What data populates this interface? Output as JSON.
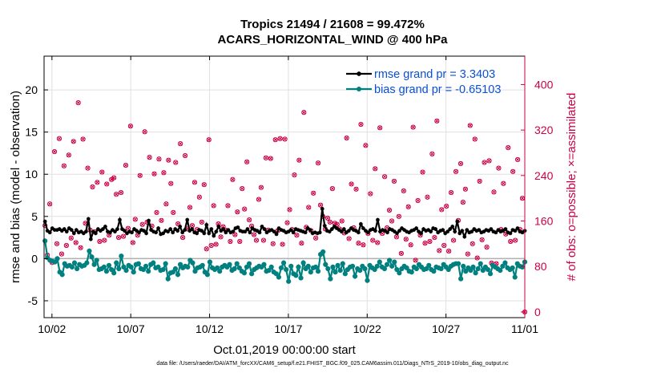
{
  "title_line1": "Tropics 21494 / 21608 = 99.472%",
  "title_line2": "ACARS_HORIZONTAL_WIND @ 400 hPa",
  "footnote": "data file: /Users/raeder/DAI/ATM_forcXX/CAM6_setup/f.e21.FHIST_BGC.f09_025.CAM6assim.011/Diags_NTrS_2019-10/obs_diag_output.nc",
  "colors": {
    "rmse": "#000000",
    "bias": "#00807f",
    "obs": "#cc0044",
    "legend_text": "#0a4fd6",
    "grid": "#e0e0e0",
    "zero_line": "#b0b0b0"
  },
  "chart_data": {
    "type": "line",
    "xlabel": "Oct.01,2019 00:00:00 start",
    "ylabel": "rmse and bias (model - observation)",
    "ylabel_right": "# of obs: o=possible; ×=assimilated",
    "xlim": [
      0.5,
      31.0
    ],
    "ylim": [
      -7,
      24
    ],
    "ylim_right": [
      -10,
      450
    ],
    "xtick_values": [
      1,
      6,
      11,
      16,
      21,
      26,
      31
    ],
    "xtick_labels": [
      "10/02",
      "10/07",
      "10/12",
      "10/17",
      "10/22",
      "10/27",
      "11/01"
    ],
    "ytick_values": [
      -5,
      0,
      5,
      10,
      15,
      20
    ],
    "ytick_labels": [
      "-5",
      "0",
      "5",
      "10",
      "15",
      "20"
    ],
    "ytick_right_values": [
      0,
      80,
      160,
      240,
      320,
      400
    ],
    "ytick_right_labels": [
      "0",
      "80",
      "160",
      "240",
      "320",
      "400"
    ],
    "legend": {
      "placement": "top-right",
      "entries": [
        "rmse grand pr = 3.3403",
        "bias grand pr = -0.65103"
      ]
    },
    "series": [
      {
        "name": "rmse grand pr = 3.3403",
        "axis": "left",
        "marker": "star",
        "values": [
          4.4,
          3.3,
          3.1,
          3.6,
          3.4,
          3.4,
          3.5,
          3.3,
          3.5,
          3.2,
          3.6,
          3.4,
          3.0,
          3.4,
          3.1,
          3.2,
          3.0,
          3.2,
          4.7,
          2.3,
          3.2,
          3.0,
          3.5,
          3.3,
          3.5,
          3.8,
          3.2,
          3.1,
          3.4,
          3.2,
          3.5,
          4.6,
          3.5,
          3.3,
          3.0,
          3.2,
          3.1,
          3.5,
          3.3,
          3.1,
          3.4,
          3.3,
          3.0,
          4.5,
          3.4,
          3.2,
          3.1,
          3.6,
          2.9,
          3.0,
          3.3,
          3.2,
          3.5,
          3.1,
          3.5,
          3.3,
          3.8,
          3.1,
          3.4,
          4.6,
          3.3,
          3.5,
          3.1,
          3.0,
          3.4,
          3.3,
          3.0,
          4.0,
          3.0,
          3.5,
          2.7,
          3.2,
          3.8,
          3.3,
          3.5,
          3.1,
          3.4,
          3.1,
          3.2,
          3.6,
          3.7,
          3.3,
          3.2,
          3.2,
          3.5,
          3.1,
          3.6,
          3.4,
          3.3,
          3.1,
          3.8,
          3.5,
          3.1,
          3.3,
          3.4,
          3.2,
          2.9,
          3.6,
          3.4,
          3.3,
          3.1,
          3.2,
          3.4,
          3.1,
          3.5,
          3.4,
          3.3,
          3.2,
          3.1,
          3.6,
          3.4,
          3.0,
          3.1,
          3.0,
          3.1,
          5.9,
          3.9,
          3.3,
          3.2,
          3.5,
          3.8,
          3.6,
          3.4,
          3.2,
          3.5,
          3.1,
          3.3,
          3.6,
          3.4,
          3.3,
          3.1,
          4.1,
          3.6,
          3.3,
          3.1,
          3.4,
          3.5,
          3.3,
          4.6,
          3.2,
          3.4,
          3.3,
          3.1,
          3.5,
          3.4,
          3.2,
          3.0,
          3.3,
          3.6,
          3.4,
          3.2,
          3.1,
          3.3,
          3.4,
          3.6,
          3.2,
          3.0,
          3.5,
          3.3,
          3.4,
          3.2,
          3.6,
          3.5,
          3.1,
          3.3,
          3.4,
          3.0,
          3.2,
          3.5,
          3.8,
          3.2,
          4.4,
          3.0,
          3.3,
          2.6,
          3.4,
          3.1,
          3.2,
          3.5,
          3.3,
          3.4,
          3.1,
          3.2,
          3.4,
          3.3,
          3.5,
          3.2,
          3.1,
          3.4,
          3.2,
          3.3,
          3.5,
          3.1,
          3.0,
          3.4,
          3.3,
          3.6,
          3.2,
          3.1,
          3.3
        ]
      },
      {
        "name": "bias grand pr = -0.65103",
        "axis": "left",
        "marker": "dot",
        "values": [
          2.1,
          0.1,
          -0.2,
          -0.3,
          -0.4,
          0.0,
          -1.6,
          -1.9,
          -0.6,
          -0.9,
          -0.8,
          -1.0,
          -0.5,
          -1.2,
          -0.7,
          -0.9,
          -0.8,
          -0.5,
          0.9,
          0.2,
          -0.7,
          -0.2,
          -1.3,
          -1.2,
          -1.0,
          -1.5,
          -0.8,
          -1.3,
          -1.7,
          -0.5,
          -1.2,
          0.3,
          -1.0,
          -1.4,
          -0.8,
          -1.0,
          -1.6,
          -0.7,
          -0.6,
          -1.2,
          -1.3,
          -0.9,
          -1.5,
          -0.7,
          -0.5,
          -1.1,
          -1.0,
          -1.4,
          -1.3,
          -0.6,
          -2.4,
          -1.7,
          -1.6,
          -1.2,
          -1.9,
          -0.7,
          -1.1,
          -0.9,
          -1.0,
          -0.2,
          -0.5,
          -1.5,
          -1.1,
          -1.0,
          -0.8,
          -1.6,
          -1.9,
          -0.4,
          -1.1,
          -1.3,
          -1.1,
          -1.5,
          -1.0,
          -0.8,
          -1.0,
          -0.7,
          -1.4,
          -1.2,
          -0.6,
          -1.1,
          -1.5,
          -1.7,
          -1.0,
          -0.6,
          -1.8,
          -1.3,
          -1.1,
          -0.9,
          -1.0,
          -0.7,
          -1.5,
          -1.4,
          -1.0,
          -1.6,
          -1.8,
          -2.2,
          -1.1,
          -0.5,
          -1.3,
          -2.7,
          -0.9,
          -1.8,
          -2.0,
          -1.0,
          -2.3,
          -0.5,
          -1.2,
          -0.9,
          -1.6,
          -1.1,
          -1.0,
          -1.5,
          0.5,
          0.8,
          -0.7,
          -1.2,
          -2.4,
          -1.0,
          -1.6,
          -0.8,
          -1.4,
          -0.6,
          -1.8,
          -1.3,
          -1.0,
          -0.9,
          -2.1,
          -1.2,
          -1.4,
          -0.9,
          -1.2,
          -2.6,
          -0.8,
          -1.1,
          -1.3,
          -0.9,
          -0.4,
          -1.0,
          -1.2,
          -0.7,
          -0.2,
          -0.9,
          -0.4,
          -1.3,
          -1.7,
          -1.2,
          -0.9,
          -1.1,
          -1.5,
          -1.6,
          -1.0,
          -1.2,
          -0.7,
          -1.0,
          -1.3,
          -1.2,
          -0.8,
          -1.3,
          -1.5,
          -1.0,
          -1.1,
          -1.2,
          -0.7,
          -1.0,
          -1.3,
          -0.9,
          -0.7,
          -0.6,
          -0.6,
          -2.4,
          -0.9,
          -1.5,
          -1.1,
          -1.4,
          -1.0,
          -1.7,
          -1.2,
          -0.6,
          -1.4,
          -1.0,
          -1.3,
          -1.8,
          -0.8,
          -1.0,
          -1.2,
          -1.4,
          -0.9,
          -0.5,
          -1.1,
          -1.3,
          -1.1,
          -2.2,
          -0.6,
          -0.9,
          -1.0,
          -0.4
        ]
      },
      {
        "name": "obs possible",
        "axis": "right",
        "marker": "circle",
        "values": [
          152,
          100,
          190,
          87,
          282,
          120,
          305,
          102,
          257,
          117,
          276,
          130,
          300,
          122,
          368,
          113,
          304,
          156,
          253,
          144,
          220,
          141,
          228,
          124,
          246,
          126,
          225,
          135,
          233,
          236,
          207,
          131,
          210,
          133,
          258,
          147,
          327,
          122,
          163,
          135,
          240,
          154,
          317,
          158,
          272,
          151,
          243,
          175,
          269,
          161,
          245,
          190,
          267,
          226,
          175,
          263,
          155,
          296,
          131,
          275,
          146,
          184,
          152,
          228,
          145,
          202,
          158,
          224,
          111,
          303,
          117,
          187,
          119,
          155,
          132,
          150,
          144,
          187,
          124,
          233,
          136,
          176,
          124,
          217,
          181,
          264,
          162,
          151,
          136,
          126,
          198,
          219,
          126,
          271,
          144,
          270,
          120,
          303,
          143,
          305,
          119,
          304,
          157,
          180,
          145,
          241,
          135,
          267,
          121,
          351,
          149,
          184,
          143,
          209,
          130,
          262,
          188,
          168,
          146,
          165,
          158,
          217,
          156,
          154,
          146,
          160,
          139,
          306,
          129,
          225,
          148,
          216,
          121,
          330,
          118,
          293,
          138,
          208,
          126,
          252,
          122,
          324,
          138,
          238,
          148,
          179,
          160,
          230,
          132,
          168,
          103,
          213,
          128,
          185,
          118,
          325,
          91,
          196,
          135,
          246,
          121,
          202,
          124,
          278,
          131,
          336,
          108,
          180,
          117,
          186,
          107,
          210,
          126,
          247,
          161,
          261,
          193,
          216,
          102,
          328,
          120,
          304,
          95,
          230,
          127,
          263,
          114,
          266,
          86,
          211,
          85,
          253,
          145,
          226,
          137,
          289,
          124,
          247,
          126,
          268,
          145,
          200,
          0
        ]
      },
      {
        "name": "obs assimilated",
        "axis": "right",
        "marker": "x",
        "values": [
          152,
          100,
          190,
          87,
          282,
          120,
          305,
          102,
          257,
          117,
          276,
          130,
          300,
          122,
          368,
          113,
          304,
          156,
          253,
          144,
          220,
          141,
          228,
          124,
          246,
          126,
          225,
          135,
          233,
          236,
          207,
          131,
          210,
          133,
          258,
          147,
          327,
          122,
          163,
          135,
          240,
          154,
          317,
          158,
          272,
          151,
          243,
          175,
          269,
          161,
          245,
          190,
          267,
          226,
          175,
          263,
          155,
          296,
          131,
          275,
          146,
          184,
          152,
          228,
          145,
          202,
          158,
          224,
          111,
          303,
          117,
          187,
          119,
          155,
          132,
          150,
          144,
          187,
          124,
          233,
          136,
          176,
          124,
          217,
          181,
          264,
          162,
          151,
          136,
          126,
          198,
          219,
          126,
          271,
          144,
          270,
          120,
          303,
          143,
          305,
          119,
          304,
          157,
          180,
          145,
          241,
          135,
          267,
          121,
          351,
          149,
          184,
          143,
          209,
          130,
          262,
          188,
          168,
          146,
          165,
          158,
          217,
          156,
          154,
          146,
          160,
          139,
          306,
          129,
          225,
          148,
          216,
          121,
          330,
          118,
          293,
          138,
          208,
          126,
          252,
          122,
          324,
          138,
          238,
          148,
          179,
          160,
          230,
          132,
          168,
          103,
          213,
          128,
          185,
          118,
          325,
          91,
          196,
          135,
          246,
          121,
          202,
          124,
          278,
          131,
          336,
          108,
          180,
          117,
          186,
          107,
          210,
          126,
          247,
          161,
          261,
          193,
          216,
          102,
          328,
          120,
          304,
          95,
          230,
          127,
          263,
          114,
          266,
          86,
          211,
          85,
          253,
          145,
          226,
          137,
          289,
          124,
          247,
          126,
          268,
          145,
          200,
          0
        ]
      }
    ]
  }
}
